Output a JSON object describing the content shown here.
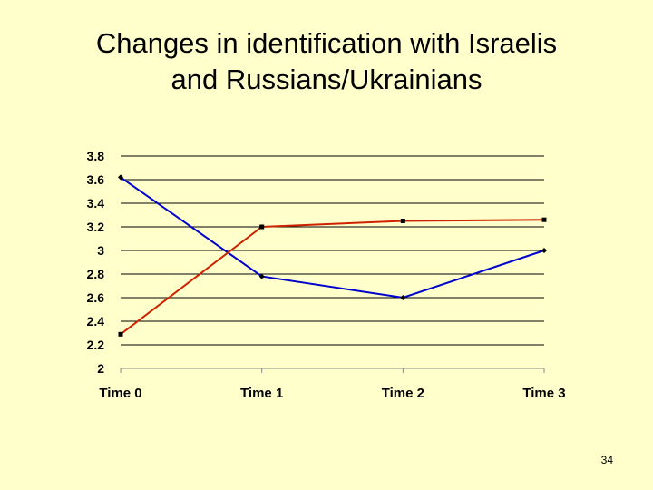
{
  "slide": {
    "title_line1": "Changes in identification with Israelis",
    "title_line2": "and Russians/Ukrainians",
    "page_number": "34"
  },
  "chart_data": {
    "type": "line",
    "categories": [
      "Time 0",
      "Time 1",
      "Time 2",
      "Time 3"
    ],
    "series": [
      {
        "values": [
          3.62,
          2.78,
          2.6,
          3.0
        ],
        "color": "#0000cc",
        "marker": "diamond"
      },
      {
        "values": [
          2.29,
          3.2,
          3.25,
          3.26
        ],
        "color": "#cc2200",
        "marker": "square"
      }
    ],
    "ylim": [
      2,
      3.8
    ],
    "yticks": [
      "2",
      "2.2",
      "2.4",
      "2.6",
      "2.8",
      "3",
      "3.2",
      "3.4",
      "3.6",
      "3.8"
    ],
    "grid": true
  }
}
